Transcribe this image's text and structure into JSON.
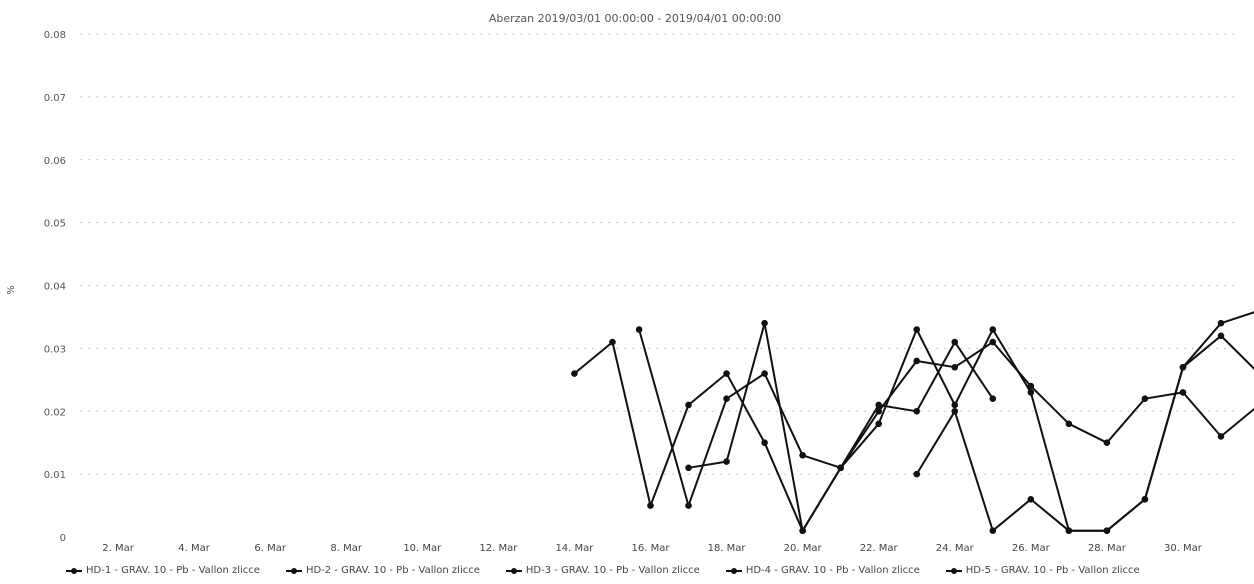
{
  "chart_data": {
    "type": "line",
    "title": "Aberzan 2019/03/01 00:00:00 - 2019/04/01 00:00:00",
    "xlabel": "",
    "ylabel": "%",
    "ylim": [
      0,
      0.08
    ],
    "y_ticks": [
      "0",
      "0.01",
      "0.02",
      "0.03",
      "0.04",
      "0.05",
      "0.06",
      "0.07",
      "0.08"
    ],
    "x_ticks": [
      "2. Mar",
      "4. Mar",
      "6. Mar",
      "8. Mar",
      "10. Mar",
      "12. Mar",
      "14. Mar",
      "16. Mar",
      "18. Mar",
      "20. Mar",
      "22. Mar",
      "24. Mar",
      "26. Mar",
      "28. Mar",
      "30. Mar"
    ],
    "x_range": [
      1,
      31.5
    ],
    "grid": true,
    "legend_position": "bottom",
    "series": [
      {
        "name": "HD-1 - GRAV. 10 - Pb - Vallon zlicce",
        "x": [
          15.7,
          17.0,
          18.0,
          19.0,
          20.0,
          21.0,
          22.0,
          23.0,
          24.0,
          25.0,
          26.0,
          27.0,
          28.0,
          29.0,
          30.0,
          31.0,
          32.0
        ],
        "y": [
          0.033,
          0.005,
          0.022,
          0.026,
          0.013,
          0.011,
          0.02,
          0.028,
          0.027,
          0.031,
          0.024,
          0.018,
          0.015,
          0.022,
          0.023,
          0.016,
          0.021
        ]
      },
      {
        "name": "HD-2 - GRAV. 10 - Pb - Vallon zlicce",
        "x": [
          14.0,
          15.0,
          16.0,
          17.0,
          18.0,
          19.0,
          20.0,
          21.0,
          22.0,
          23.0,
          24.0,
          25.0
        ],
        "y": [
          0.026,
          0.031,
          0.005,
          0.021,
          0.026,
          0.015,
          0.001,
          0.011,
          0.021,
          0.02,
          0.031,
          0.022
        ]
      },
      {
        "name": "HD-3 - GRAV. 10 - Pb - Vallon zlicce",
        "x": [
          17.0,
          18.0,
          19.0,
          20.0,
          21.0,
          22.0,
          23.0,
          24.0,
          25.0,
          26.0,
          27.0,
          28.0,
          29.0,
          30.0,
          31.0,
          32.0
        ],
        "y": [
          0.011,
          0.012,
          0.034,
          0.001,
          0.011,
          0.018,
          0.033,
          0.021,
          0.033,
          0.023,
          0.001,
          0.001,
          0.006,
          0.027,
          0.034,
          0.036
        ]
      },
      {
        "name": "HD-4 - GRAV. 10 - Pb - Vallon zlicce",
        "x": [
          23.0,
          24.0,
          25.0,
          26.0,
          27.0,
          28.0,
          29.0,
          30.0,
          31.0,
          32.0
        ],
        "y": [
          0.01,
          0.02,
          0.001,
          0.006,
          0.001,
          0.001,
          0.006,
          0.027,
          0.032,
          0.026
        ]
      },
      {
        "name": "HD-5 - GRAV. 10 - Pb - Vallon zlicce",
        "x": [],
        "y": []
      }
    ]
  },
  "legend": {
    "items": [
      "HD-1 - GRAV. 10 - Pb - Vallon zlicce",
      "HD-2 - GRAV. 10 - Pb - Vallon zlicce",
      "HD-3 - GRAV. 10 - Pb - Vallon zlicce",
      "HD-4 - GRAV. 10 - Pb - Vallon zlicce",
      "HD-5 - GRAV. 10 - Pb - Vallon zlicce"
    ]
  }
}
